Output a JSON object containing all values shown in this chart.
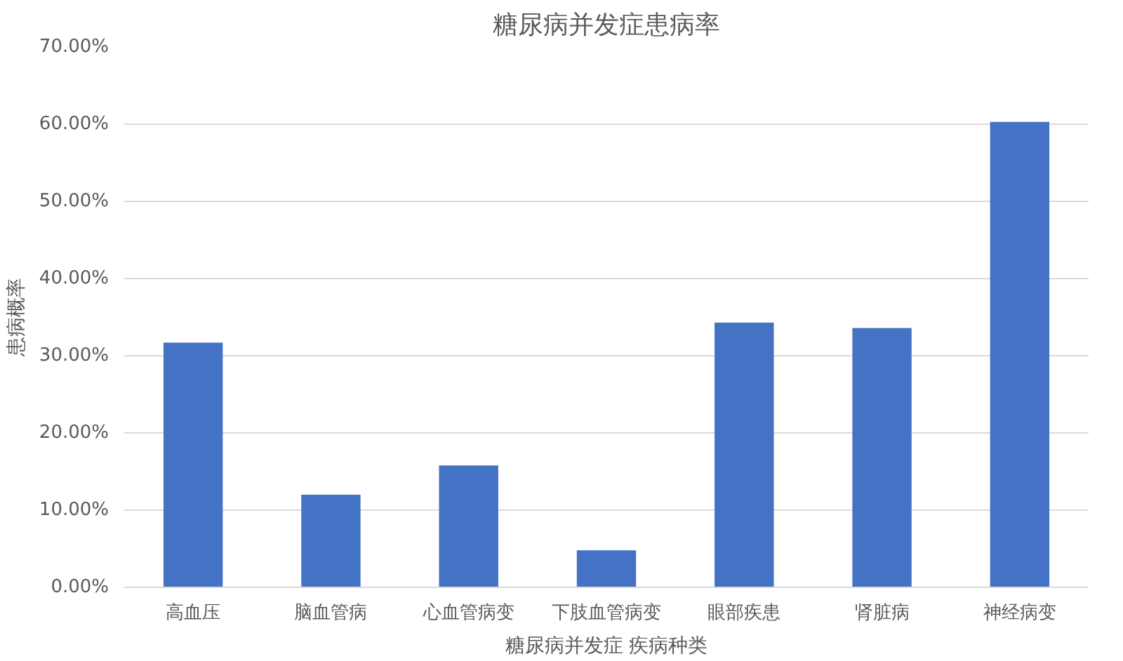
{
  "chart_data": {
    "type": "bar",
    "title": "糖尿病并发症患病率",
    "xlabel": "糖尿病并发症 疾病种类",
    "ylabel": "患病概率",
    "categories": [
      "高血压",
      "脑血管病",
      "心血管病变",
      "下肢血管病变",
      "眼部疾患",
      "肾脏病",
      "神经病变"
    ],
    "values": [
      31.7,
      12.0,
      15.8,
      4.8,
      34.3,
      33.6,
      60.3
    ],
    "color": "#4472c4",
    "ylim": [
      0,
      70
    ],
    "yticks": [
      {
        "value": 0,
        "label": "0.00%"
      },
      {
        "value": 10,
        "label": "10.00%"
      },
      {
        "value": 20,
        "label": "20.00%"
      },
      {
        "value": 30,
        "label": "30.00%"
      },
      {
        "value": 40,
        "label": "40.00%"
      },
      {
        "value": 50,
        "label": "50.00%"
      },
      {
        "value": 60,
        "label": "60.00%"
      },
      {
        "value": 70,
        "label": "70.00%"
      }
    ],
    "grid": "y"
  }
}
